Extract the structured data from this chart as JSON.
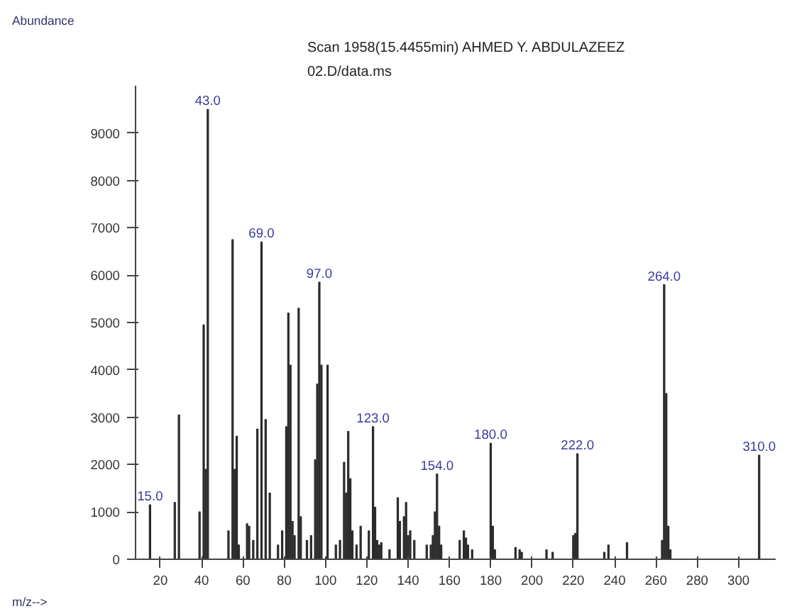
{
  "chart_data": {
    "type": "bar",
    "title": "Scan 1958(15.4455min) AHMED Y. ABDULAZEEZ",
    "subtitle": "02.D/data.ms",
    "xlabel": "m/z-->",
    "ylabel": "Abundance",
    "x": [
      15,
      27,
      29,
      39,
      41,
      42,
      43,
      53,
      55,
      56,
      57,
      58,
      62,
      63,
      65,
      67,
      69,
      71,
      73,
      77,
      79,
      81,
      82,
      83,
      84,
      85,
      87,
      88,
      91,
      93,
      95,
      96,
      97,
      98,
      101,
      105,
      107,
      109,
      110,
      111,
      112,
      113,
      115,
      117,
      121,
      123,
      124,
      125,
      126,
      127,
      131,
      135,
      136,
      138,
      139,
      140,
      141,
      143,
      149,
      151,
      152,
      153,
      154,
      155,
      156,
      165,
      167,
      168,
      169,
      171,
      180,
      181,
      182,
      192,
      194,
      195,
      207,
      210,
      220,
      221,
      222,
      235,
      237,
      246,
      263,
      264,
      265,
      266,
      267,
      310
    ],
    "values": [
      1150,
      1200,
      3050,
      1000,
      4950,
      1900,
      9500,
      600,
      6750,
      1900,
      2600,
      300,
      750,
      700,
      400,
      2750,
      6700,
      2950,
      1400,
      300,
      600,
      2800,
      5200,
      4100,
      800,
      500,
      5300,
      900,
      400,
      500,
      2100,
      3700,
      5850,
      4100,
      4100,
      300,
      400,
      2050,
      1400,
      2700,
      1700,
      600,
      300,
      700,
      600,
      2800,
      1100,
      400,
      300,
      350,
      200,
      1300,
      800,
      900,
      1200,
      500,
      600,
      400,
      300,
      300,
      500,
      1000,
      1800,
      700,
      300,
      400,
      600,
      450,
      300,
      200,
      2450,
      700,
      200,
      250,
      200,
      150,
      200,
      150,
      500,
      550,
      2230,
      150,
      300,
      350,
      400,
      5800,
      3500,
      700,
      200,
      2200
    ],
    "color": "#2b2b2b",
    "xlim": [
      8,
      318
    ],
    "ylim": [
      0,
      10000
    ],
    "xticks": [
      20,
      40,
      60,
      80,
      100,
      120,
      140,
      160,
      180,
      200,
      220,
      240,
      260,
      280,
      300
    ],
    "yticks": [
      0,
      1000,
      2000,
      3000,
      4000,
      5000,
      6000,
      7000,
      8000,
      9000
    ],
    "grid": false,
    "annotations": [
      {
        "text": "15.0",
        "x": 15,
        "y": 1150
      },
      {
        "text": "43.0",
        "x": 43,
        "y": 9500
      },
      {
        "text": "69.0",
        "x": 69,
        "y": 6700
      },
      {
        "text": "97.0",
        "x": 97,
        "y": 5850
      },
      {
        "text": "123.0",
        "x": 123,
        "y": 2800
      },
      {
        "text": "154.0",
        "x": 154,
        "y": 1800
      },
      {
        "text": "180.0",
        "x": 180,
        "y": 2450
      },
      {
        "text": "222.0",
        "x": 222,
        "y": 2230
      },
      {
        "text": "264.0",
        "x": 264,
        "y": 5800
      },
      {
        "text": "310.0",
        "x": 310,
        "y": 2200
      }
    ]
  }
}
